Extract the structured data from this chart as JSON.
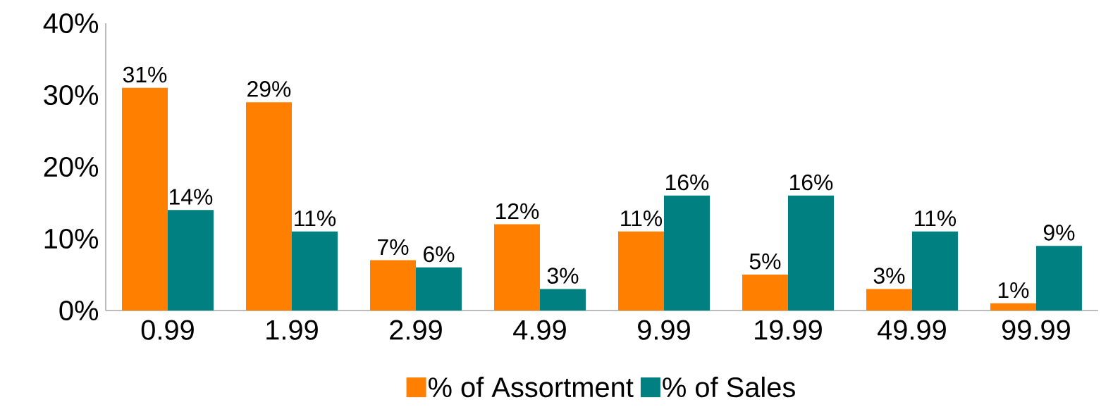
{
  "chart_data": {
    "type": "bar",
    "categories": [
      "0.99",
      "1.99",
      "2.99",
      "4.99",
      "9.99",
      "19.99",
      "49.99",
      "99.99"
    ],
    "series": [
      {
        "name": "% of Assortment",
        "color": "#ff8000",
        "values": [
          31,
          29,
          7,
          12,
          11,
          5,
          3,
          1
        ],
        "value_labels": [
          "31%",
          "29%",
          "7%",
          "12%",
          "11%",
          "5%",
          "3%",
          "1%"
        ]
      },
      {
        "name": "% of Sales",
        "color": "#008080",
        "values": [
          14,
          11,
          6,
          3,
          16,
          16,
          11,
          9
        ],
        "value_labels": [
          "14%",
          "11%",
          "6%",
          "3%",
          "16%",
          "16%",
          "11%",
          "9%"
        ]
      }
    ],
    "ylim": [
      0,
      40
    ],
    "yticks": [
      {
        "value": 0,
        "label": "0%"
      },
      {
        "value": 10,
        "label": "10%"
      },
      {
        "value": 20,
        "label": "20%"
      },
      {
        "value": 30,
        "label": "30%"
      },
      {
        "value": 40,
        "label": "40%"
      }
    ],
    "grid": false,
    "legend": "bottom"
  }
}
